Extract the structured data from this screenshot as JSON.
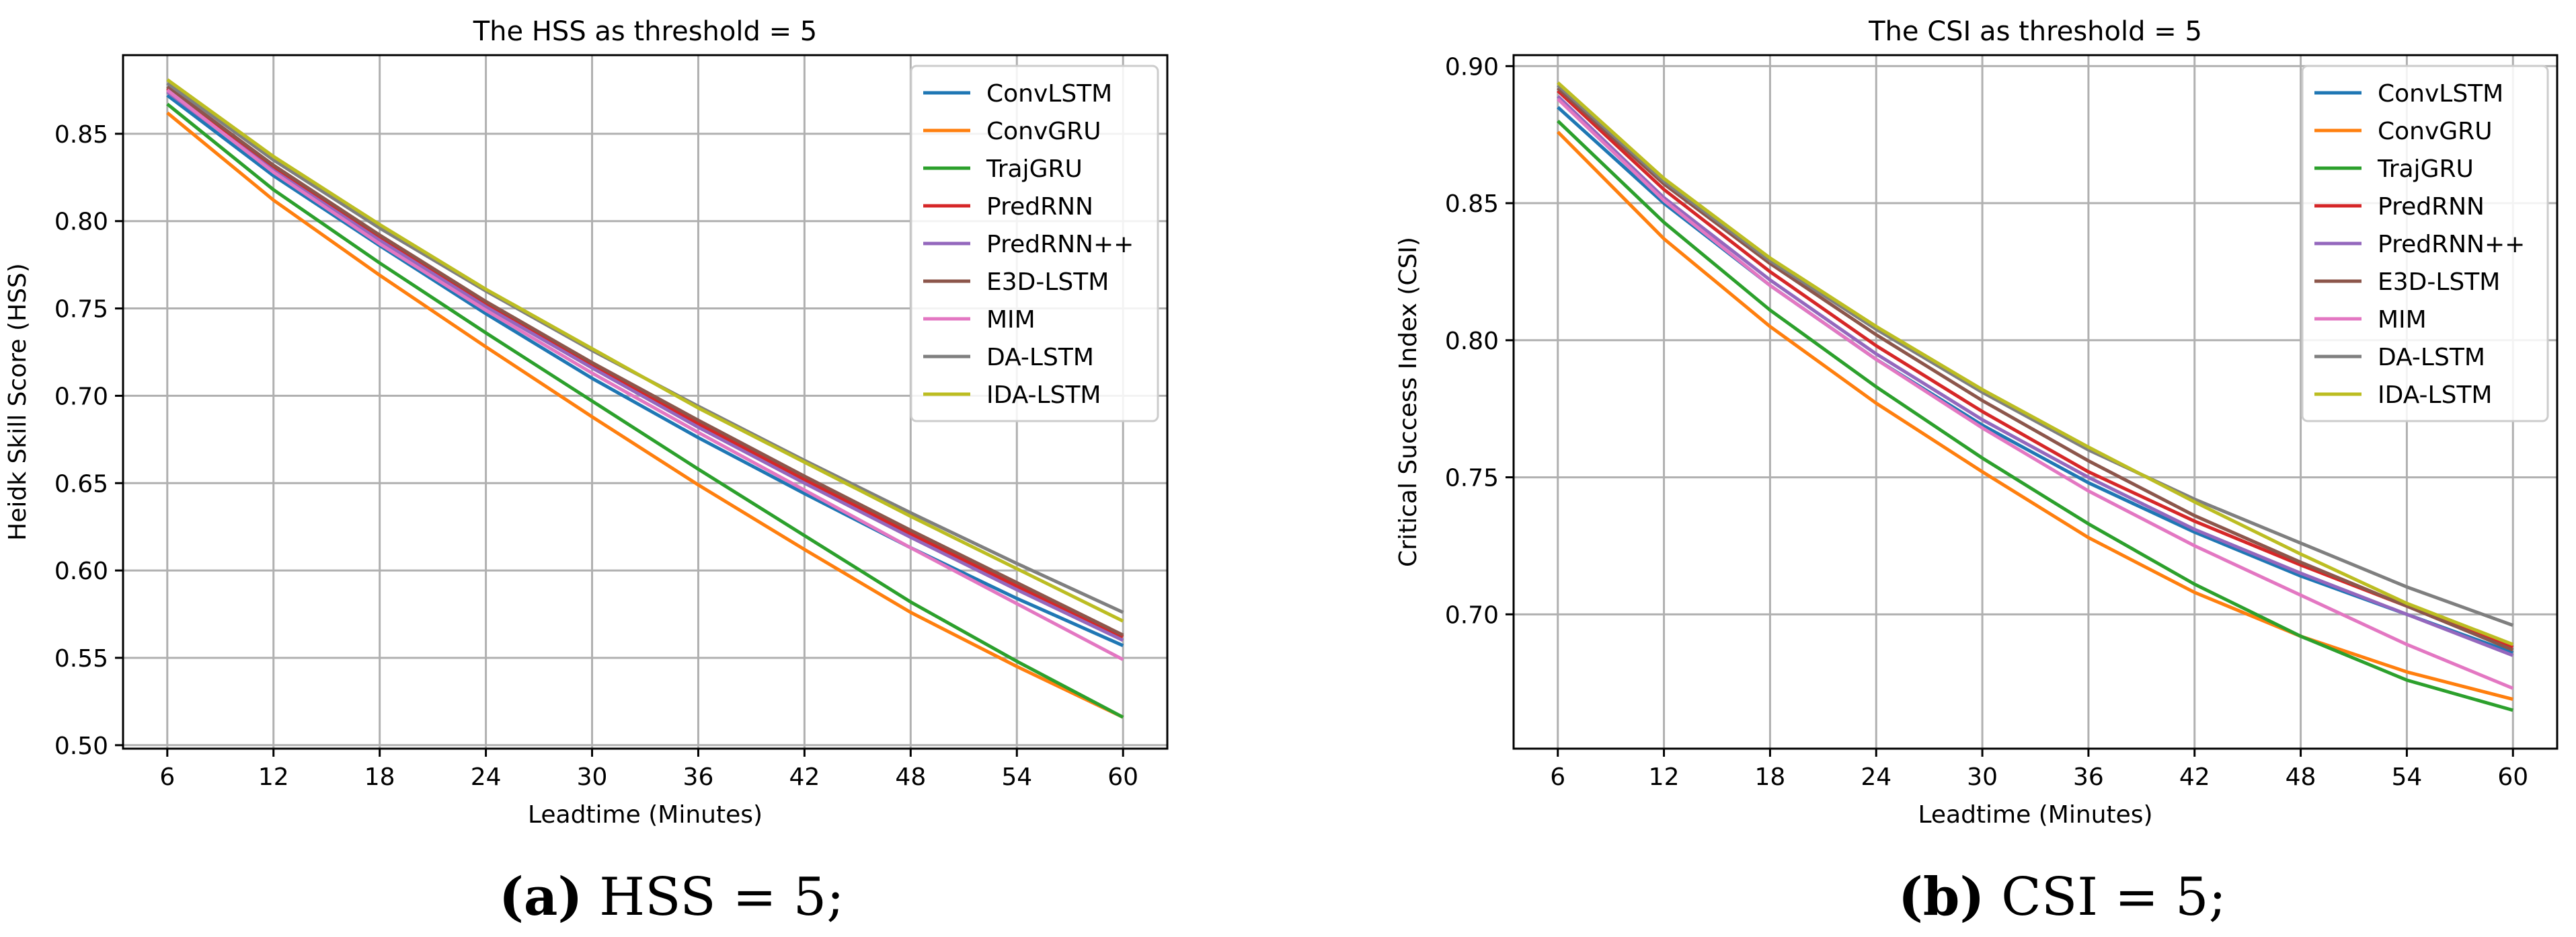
{
  "chart_data": [
    {
      "type": "line",
      "title": "The HSS as threshold = 5",
      "xlabel": "Leadtime (Minutes)",
      "ylabel": "Heidk Skill Score (HSS)",
      "x": [
        6,
        12,
        18,
        24,
        30,
        36,
        42,
        48,
        54,
        60
      ],
      "xlim": [
        3.5,
        62.5
      ],
      "ylim": [
        0.498,
        0.895
      ],
      "yticks": [
        0.5,
        0.55,
        0.6,
        0.65,
        0.7,
        0.75,
        0.8,
        0.85
      ],
      "ytick_labels": [
        "0.50",
        "0.55",
        "0.60",
        "0.65",
        "0.70",
        "0.75",
        "0.80",
        "0.85"
      ],
      "grid": true,
      "legend_position": "top-right",
      "caption": {
        "label": "(a)",
        "text": "HSS = 5;"
      },
      "series": [
        {
          "name": "ConvLSTM",
          "color": "#1f77b4",
          "values": [
            0.872,
            0.826,
            0.786,
            0.747,
            0.71,
            0.676,
            0.644,
            0.613,
            0.584,
            0.557
          ]
        },
        {
          "name": "ConvGRU",
          "color": "#ff7f0e",
          "values": [
            0.862,
            0.812,
            0.769,
            0.728,
            0.688,
            0.649,
            0.612,
            0.576,
            0.545,
            0.516
          ]
        },
        {
          "name": "TrajGRU",
          "color": "#2ca02c",
          "values": [
            0.867,
            0.818,
            0.776,
            0.736,
            0.697,
            0.658,
            0.62,
            0.582,
            0.548,
            0.516
          ]
        },
        {
          "name": "PredRNN",
          "color": "#d62728",
          "values": [
            0.876,
            0.831,
            0.791,
            0.753,
            0.718,
            0.684,
            0.652,
            0.621,
            0.591,
            0.562
          ]
        },
        {
          "name": "PredRNN++",
          "color": "#9467bd",
          "values": [
            0.874,
            0.829,
            0.789,
            0.751,
            0.716,
            0.682,
            0.65,
            0.619,
            0.589,
            0.56
          ]
        },
        {
          "name": "E3D-LSTM",
          "color": "#8c564b",
          "values": [
            0.877,
            0.832,
            0.792,
            0.754,
            0.719,
            0.686,
            0.654,
            0.623,
            0.593,
            0.563
          ]
        },
        {
          "name": "MIM",
          "color": "#e377c2",
          "values": [
            0.875,
            0.828,
            0.787,
            0.749,
            0.713,
            0.679,
            0.646,
            0.613,
            0.581,
            0.549
          ]
        },
        {
          "name": "DA-LSTM",
          "color": "#7f7f7f",
          "values": [
            0.879,
            0.835,
            0.796,
            0.76,
            0.726,
            0.694,
            0.663,
            0.633,
            0.604,
            0.576
          ]
        },
        {
          "name": "IDA-LSTM",
          "color": "#bcbd22",
          "values": [
            0.881,
            0.837,
            0.798,
            0.761,
            0.727,
            0.693,
            0.662,
            0.631,
            0.601,
            0.571
          ]
        }
      ]
    },
    {
      "type": "line",
      "title": "The CSI as threshold = 5",
      "xlabel": "Leadtime (Minutes)",
      "ylabel": "Critical Success Index (CSI)",
      "x": [
        6,
        12,
        18,
        24,
        30,
        36,
        42,
        48,
        54,
        60
      ],
      "xlim": [
        3.5,
        62.5
      ],
      "ylim": [
        0.651,
        0.904
      ],
      "yticks": [
        0.7,
        0.75,
        0.8,
        0.85,
        0.9
      ],
      "ytick_labels": [
        "0.70",
        "0.75",
        "0.80",
        "0.85",
        "0.90"
      ],
      "grid": true,
      "legend_position": "top-right",
      "caption": {
        "label": "(b)",
        "text": "CSI = 5;"
      },
      "series": [
        {
          "name": "ConvLSTM",
          "color": "#1f77b4",
          "values": [
            0.885,
            0.85,
            0.82,
            0.793,
            0.769,
            0.748,
            0.73,
            0.714,
            0.7,
            0.686
          ]
        },
        {
          "name": "ConvGRU",
          "color": "#ff7f0e",
          "values": [
            0.876,
            0.837,
            0.805,
            0.777,
            0.752,
            0.728,
            0.708,
            0.692,
            0.679,
            0.669
          ]
        },
        {
          "name": "TrajGRU",
          "color": "#2ca02c",
          "values": [
            0.88,
            0.843,
            0.811,
            0.783,
            0.757,
            0.733,
            0.711,
            0.692,
            0.676,
            0.665
          ]
        },
        {
          "name": "PredRNN",
          "color": "#d62728",
          "values": [
            0.891,
            0.855,
            0.825,
            0.798,
            0.774,
            0.752,
            0.734,
            0.718,
            0.703,
            0.688
          ]
        },
        {
          "name": "PredRNN++",
          "color": "#9467bd",
          "values": [
            0.889,
            0.852,
            0.822,
            0.795,
            0.771,
            0.75,
            0.731,
            0.715,
            0.7,
            0.685
          ]
        },
        {
          "name": "E3D-LSTM",
          "color": "#8c564b",
          "values": [
            0.892,
            0.857,
            0.828,
            0.802,
            0.778,
            0.756,
            0.736,
            0.719,
            0.703,
            0.687
          ]
        },
        {
          "name": "MIM",
          "color": "#e377c2",
          "values": [
            0.888,
            0.851,
            0.82,
            0.793,
            0.768,
            0.745,
            0.725,
            0.707,
            0.689,
            0.673
          ]
        },
        {
          "name": "DA-LSTM",
          "color": "#7f7f7f",
          "values": [
            0.893,
            0.858,
            0.829,
            0.804,
            0.781,
            0.76,
            0.742,
            0.726,
            0.71,
            0.696
          ]
        },
        {
          "name": "IDA-LSTM",
          "color": "#bcbd22",
          "values": [
            0.894,
            0.859,
            0.83,
            0.805,
            0.782,
            0.761,
            0.741,
            0.722,
            0.704,
            0.689
          ]
        }
      ]
    }
  ]
}
